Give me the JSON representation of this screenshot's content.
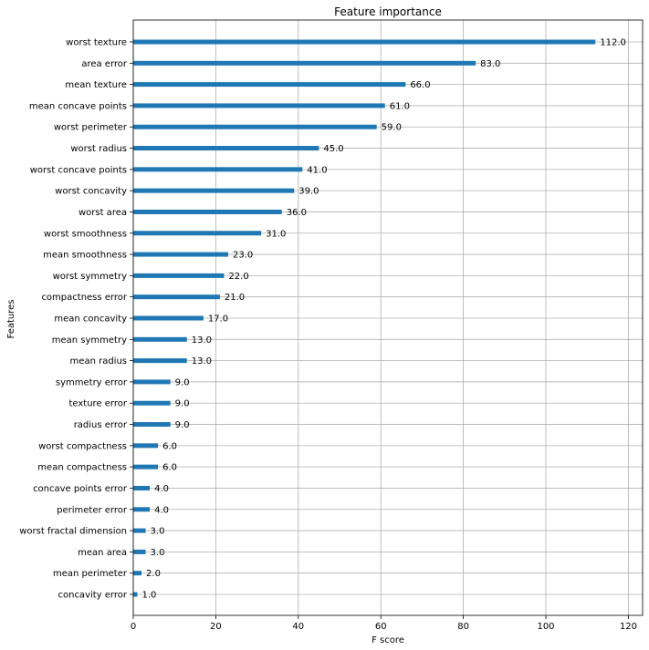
{
  "chart_data": {
    "type": "bar",
    "orientation": "horizontal",
    "title": "Feature importance",
    "xlabel": "F score",
    "ylabel": "Features",
    "xlim": [
      0,
      123
    ],
    "xticks": [
      0,
      20,
      40,
      60,
      80,
      100,
      120
    ],
    "grid": true,
    "bar_color": "#1f77b4",
    "grid_color": "#b0b0b0",
    "categories": [
      "worst texture",
      "area error",
      "mean texture",
      "mean concave points",
      "worst perimeter",
      "worst radius",
      "worst concave points",
      "worst concavity",
      "worst area",
      "worst smoothness",
      "mean smoothness",
      "worst symmetry",
      "compactness error",
      "mean concavity",
      "mean symmetry",
      "mean radius",
      "symmetry error",
      "texture error",
      "radius error",
      "worst compactness",
      "mean compactness",
      "concave points error",
      "perimeter error",
      "worst fractal dimension",
      "mean area",
      "mean perimeter",
      "concavity error"
    ],
    "values": [
      112,
      83,
      66,
      61,
      59,
      45,
      41,
      39,
      36,
      31,
      23,
      22,
      21,
      17,
      13,
      13,
      9,
      9,
      9,
      6,
      6,
      4,
      4,
      3,
      3,
      2,
      1
    ],
    "value_labels": [
      "112.0",
      "83.0",
      "66.0",
      "61.0",
      "59.0",
      "45.0",
      "41.0",
      "39.0",
      "36.0",
      "31.0",
      "23.0",
      "22.0",
      "21.0",
      "17.0",
      "13.0",
      "13.0",
      "9.0",
      "9.0",
      "9.0",
      "6.0",
      "6.0",
      "4.0",
      "4.0",
      "3.0",
      "3.0",
      "2.0",
      "1.0"
    ]
  }
}
